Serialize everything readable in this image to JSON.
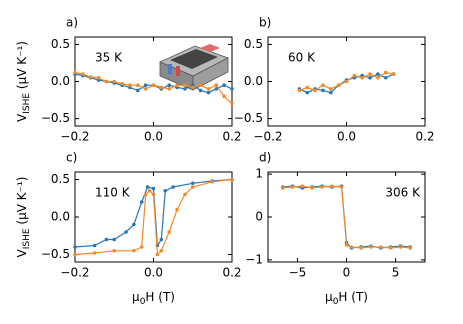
{
  "chart_data": [
    {
      "type": "line",
      "label": "a)",
      "annotation": "35 K",
      "y_label": {
        "text": "V",
        "subscript": "ISHE",
        "unit": " (μV K⁻¹)"
      },
      "xlim": [
        -0.2,
        0.2
      ],
      "ylim": [
        -0.6,
        0.6
      ],
      "xticks": [
        {
          "value": -0.2,
          "label": "−0.2"
        },
        {
          "value": 0,
          "label": "0.0"
        },
        {
          "value": 0.2,
          "label": "0.2"
        }
      ],
      "yticks": [
        {
          "value": 0.5,
          "label": "0.5"
        },
        {
          "value": 0,
          "label": "0.0"
        },
        {
          "value": -0.5,
          "label": "−0.5"
        }
      ],
      "series": [
        {
          "color": "#2878b5",
          "x": [
            -0.2,
            -0.18,
            -0.16,
            -0.14,
            -0.12,
            -0.1,
            -0.08,
            -0.06,
            -0.04,
            -0.02,
            0,
            0.02,
            0.04,
            0.06,
            0.08,
            0.1,
            0.12,
            0.14,
            0.16,
            0.18,
            0.2
          ],
          "values": [
            0.1,
            0.08,
            0.05,
            0.02,
            0.0,
            -0.02,
            -0.05,
            -0.08,
            -0.12,
            -0.05,
            -0.05,
            -0.1,
            -0.05,
            -0.08,
            -0.1,
            -0.05,
            -0.12,
            -0.15,
            -0.1,
            -0.05,
            -0.1
          ]
        },
        {
          "color": "#f28a2a",
          "x": [
            -0.2,
            -0.18,
            -0.16,
            -0.14,
            -0.12,
            -0.1,
            -0.08,
            -0.06,
            -0.04,
            -0.02,
            0,
            0.02,
            0.04,
            0.06,
            0.08,
            0.1,
            0.12,
            0.14,
            0.16,
            0.18,
            0.2
          ],
          "values": [
            0.12,
            0.1,
            0.06,
            0.05,
            0.0,
            0.0,
            -0.03,
            -0.05,
            -0.05,
            -0.1,
            -0.05,
            -0.08,
            -0.1,
            -0.05,
            -0.05,
            -0.08,
            -0.05,
            -0.1,
            -0.05,
            -0.2,
            -0.3
          ]
        }
      ]
    },
    {
      "type": "line",
      "label": "b)",
      "annotation": "60 K",
      "xlim": [
        -0.2,
        0.2
      ],
      "ylim": [
        -0.6,
        0.6
      ],
      "xticks": [
        {
          "value": -0.2,
          "label": "−0.2"
        },
        {
          "value": 0,
          "label": "0.0"
        },
        {
          "value": 0.2,
          "label": "0.2"
        }
      ],
      "yticks": [
        {
          "value": 0.5,
          "label": "0.5"
        },
        {
          "value": 0,
          "label": "0.0"
        },
        {
          "value": -0.5,
          "label": "−0.5"
        }
      ],
      "series": [
        {
          "color": "#2878b5",
          "x": [
            -0.12,
            -0.1,
            -0.08,
            -0.06,
            -0.04,
            -0.02,
            0,
            0.02,
            0.04,
            0.06,
            0.08,
            0.1,
            0.12
          ],
          "values": [
            -0.1,
            -0.15,
            -0.1,
            -0.12,
            -0.15,
            -0.05,
            0.02,
            0.05,
            0.08,
            0.05,
            0.1,
            0.05,
            0.1
          ]
        },
        {
          "color": "#f28a2a",
          "x": [
            -0.12,
            -0.1,
            -0.08,
            -0.06,
            -0.04,
            -0.02,
            0,
            0.02,
            0.04,
            0.06,
            0.08,
            0.1,
            0.12
          ],
          "values": [
            -0.12,
            -0.08,
            -0.12,
            -0.05,
            -0.1,
            -0.05,
            0.0,
            0.08,
            0.05,
            0.1,
            0.05,
            0.12,
            0.1
          ]
        }
      ]
    },
    {
      "type": "line",
      "label": "c)",
      "annotation": "110 K",
      "y_label": {
        "text": "V",
        "subscript": "ISHE",
        "unit": " (μV K⁻¹)"
      },
      "x_label": {
        "text": "μ",
        "subscript": "0",
        "unit": "H (T)"
      },
      "xlim": [
        -0.2,
        0.2
      ],
      "ylim": [
        -0.6,
        0.6
      ],
      "xticks": [
        {
          "value": -0.2,
          "label": "−0.2"
        },
        {
          "value": 0,
          "label": "0.0"
        },
        {
          "value": 0.2,
          "label": "0.2"
        }
      ],
      "yticks": [
        {
          "value": 0.5,
          "label": "0.5"
        },
        {
          "value": 0,
          "label": "0.0"
        },
        {
          "value": -0.5,
          "label": "−0.5"
        }
      ],
      "series": [
        {
          "color": "#2878b5",
          "x": [
            -0.2,
            -0.15,
            -0.12,
            -0.1,
            -0.07,
            -0.05,
            -0.03,
            -0.015,
            0,
            0.01,
            0.02,
            0.03,
            0.05,
            0.1,
            0.15,
            0.2
          ],
          "values": [
            -0.4,
            -0.38,
            -0.3,
            -0.3,
            -0.2,
            -0.1,
            0.2,
            0.4,
            0.38,
            -0.38,
            -0.3,
            0.35,
            0.4,
            0.45,
            0.48,
            0.5
          ]
        },
        {
          "color": "#f28a2a",
          "x": [
            -0.2,
            -0.15,
            -0.1,
            -0.05,
            -0.03,
            -0.02,
            -0.01,
            0,
            0.01,
            0.02,
            0.04,
            0.06,
            0.08,
            0.1,
            0.15,
            0.2
          ],
          "values": [
            -0.5,
            -0.48,
            -0.45,
            -0.45,
            -0.4,
            0.3,
            0.35,
            0.3,
            -0.5,
            -0.45,
            -0.2,
            0.1,
            0.3,
            0.4,
            0.47,
            0.5
          ]
        }
      ]
    },
    {
      "type": "line",
      "label": "d)",
      "annotation": "306 K",
      "x_label": {
        "text": "μ",
        "subscript": "0",
        "unit": "H (T)"
      },
      "xlim": [
        -8,
        8
      ],
      "ylim": [
        -1.05,
        1.05
      ],
      "xticks": [
        {
          "value": -5,
          "label": "−5"
        },
        0,
        5
      ],
      "yticks": [
        1,
        0,
        {
          "value": -1,
          "label": "−1"
        }
      ],
      "series": [
        {
          "color": "#2878b5",
          "x": [
            -6.5,
            -5.5,
            -4.5,
            -3.5,
            -2.5,
            -1.5,
            -0.5,
            0,
            0.5,
            1.5,
            2.5,
            3.5,
            4.5,
            5.5,
            6.5
          ],
          "values": [
            0.7,
            0.72,
            0.68,
            0.7,
            0.72,
            0.7,
            0.72,
            -0.6,
            -0.72,
            -0.7,
            -0.68,
            -0.72,
            -0.7,
            -0.68,
            -0.7
          ]
        },
        {
          "color": "#f28a2a",
          "x": [
            -6.5,
            -5.5,
            -4.5,
            -3.5,
            -2.5,
            -1.5,
            -0.5,
            0,
            0.5,
            1.5,
            2.5,
            3.5,
            4.5,
            5.5,
            6.5
          ],
          "values": [
            0.68,
            0.7,
            0.72,
            0.68,
            0.7,
            0.72,
            0.7,
            -0.65,
            -0.7,
            -0.72,
            -0.7,
            -0.7,
            -0.72,
            -0.7,
            -0.72
          ]
        }
      ]
    }
  ]
}
